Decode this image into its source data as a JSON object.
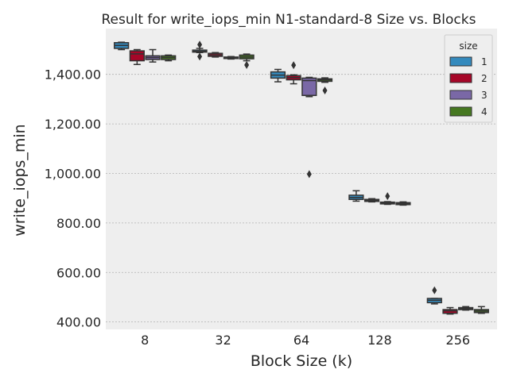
{
  "chart_data": {
    "type": "boxplot",
    "title": "Result for write_iops_min N1-standard-8 Size vs. Blocks",
    "xlabel": "Block Size (k)",
    "ylabel": "write_iops_min",
    "categories": [
      "8",
      "32",
      "64",
      "128",
      "256"
    ],
    "ylim": [
      370,
      1585
    ],
    "yticks": [
      400,
      600,
      800,
      1000,
      1200,
      1400
    ],
    "ytick_labels": [
      "400.00",
      "600.00",
      "800.00",
      "1,000.00",
      "1,200.00",
      "1,400.00"
    ],
    "grid": true,
    "legend": {
      "title": "size",
      "placement": "top-right"
    },
    "series": [
      {
        "name": "1",
        "color": "#348abd",
        "boxes": [
          {
            "min": 1500,
            "q1": 1505,
            "median": 1517,
            "q3": 1528,
            "max": 1530,
            "outliers": []
          },
          {
            "min": 1488,
            "q1": 1490,
            "median": 1493,
            "q3": 1498,
            "max": 1505,
            "outliers": [
              1520,
              1472
            ]
          },
          {
            "min": 1370,
            "q1": 1385,
            "median": 1397,
            "q3": 1410,
            "max": 1420,
            "outliers": []
          },
          {
            "min": 888,
            "q1": 895,
            "median": 903,
            "q3": 912,
            "max": 930,
            "outliers": []
          },
          {
            "min": 473,
            "q1": 478,
            "median": 488,
            "q3": 495,
            "max": 495,
            "outliers": [
              528
            ]
          }
        ]
      },
      {
        "name": "2",
        "color": "#a60628",
        "boxes": [
          {
            "min": 1440,
            "q1": 1455,
            "median": 1483,
            "q3": 1495,
            "max": 1500,
            "outliers": []
          },
          {
            "min": 1470,
            "q1": 1473,
            "median": 1479,
            "q3": 1485,
            "max": 1488,
            "outliers": []
          },
          {
            "min": 1362,
            "q1": 1378,
            "median": 1387,
            "q3": 1395,
            "max": 1398,
            "outliers": [
              1437
            ]
          },
          {
            "min": 885,
            "q1": 887,
            "median": 891,
            "q3": 895,
            "max": 898,
            "outliers": []
          },
          {
            "min": 432,
            "q1": 435,
            "median": 445,
            "q3": 450,
            "max": 458,
            "outliers": []
          }
        ]
      },
      {
        "name": "3",
        "color": "#7a68a6",
        "boxes": [
          {
            "min": 1450,
            "q1": 1460,
            "median": 1468,
            "q3": 1475,
            "max": 1500,
            "outliers": []
          },
          {
            "min": 1462,
            "q1": 1464,
            "median": 1467,
            "q3": 1470,
            "max": 1472,
            "outliers": []
          },
          {
            "min": 1310,
            "q1": 1315,
            "median": 1375,
            "q3": 1385,
            "max": 1388,
            "outliers": [
              997
            ]
          },
          {
            "min": 875,
            "q1": 877,
            "median": 880,
            "q3": 884,
            "max": 886,
            "outliers": [
              908
            ]
          },
          {
            "min": 448,
            "q1": 450,
            "median": 454,
            "q3": 458,
            "max": 462,
            "outliers": []
          }
        ]
      },
      {
        "name": "4",
        "color": "#467821",
        "boxes": [
          {
            "min": 1455,
            "q1": 1460,
            "median": 1468,
            "q3": 1475,
            "max": 1478,
            "outliers": []
          },
          {
            "min": 1455,
            "q1": 1463,
            "median": 1470,
            "q3": 1478,
            "max": 1482,
            "outliers": [
              1438
            ]
          },
          {
            "min": 1368,
            "q1": 1372,
            "median": 1378,
            "q3": 1382,
            "max": 1386,
            "outliers": [
              1335
            ]
          },
          {
            "min": 872,
            "q1": 874,
            "median": 878,
            "q3": 882,
            "max": 885,
            "outliers": []
          },
          {
            "min": 435,
            "q1": 438,
            "median": 444,
            "q3": 450,
            "max": 462,
            "outliers": []
          }
        ]
      }
    ]
  }
}
